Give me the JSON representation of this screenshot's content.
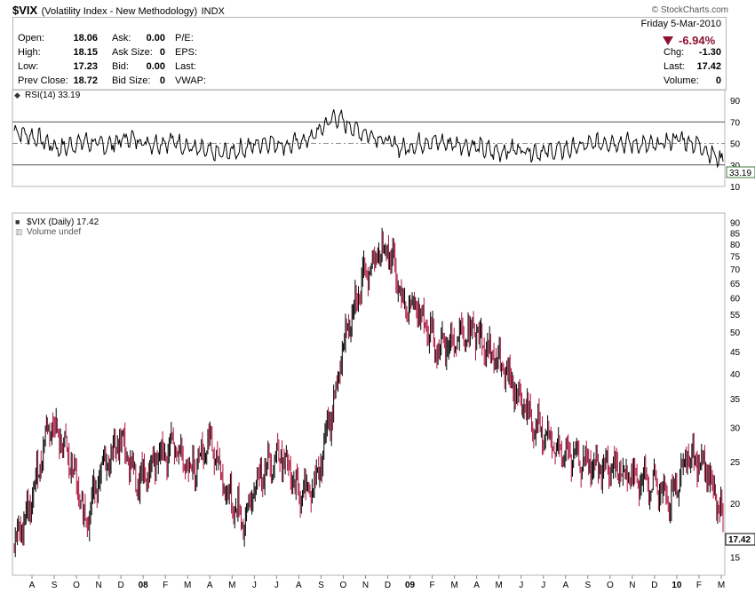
{
  "header": {
    "symbol": "$VIX",
    "name": "(Volatility Index - New Methodology)",
    "exchange": "INDX",
    "watermark": "© StockCharts.com",
    "date": "Friday  5-Mar-2010",
    "change_pct": "-6.94%",
    "quote_left": [
      {
        "label": "Open:",
        "value": "18.06"
      },
      {
        "label": "High:",
        "value": "18.15"
      },
      {
        "label": "Low:",
        "value": "17.23"
      },
      {
        "label": "Prev Close:",
        "value": "18.72"
      }
    ],
    "quote_mid": [
      {
        "label": "Ask:",
        "value": "0.00"
      },
      {
        "label": "Ask Size:",
        "value": "0"
      },
      {
        "label": "Bid:",
        "value": "0.00"
      },
      {
        "label": "Bid Size:",
        "value": "0"
      }
    ],
    "quote_mid2": [
      "P/E:",
      "EPS:",
      "Last:",
      "VWAP:"
    ],
    "quote_right": [
      {
        "label": "Chg:",
        "value": "-1.30"
      },
      {
        "label": "Last:",
        "value": "17.42"
      },
      {
        "label": "Volume:",
        "value": "0"
      }
    ]
  },
  "rsi_panel": {
    "label": "RSI(14) 33.19",
    "last_value": "33.19"
  },
  "price_panel": {
    "label": "$VIX (Daily) 17.42",
    "volume_label": "Volume undef",
    "last_value": "17.42"
  },
  "chart_data": [
    {
      "type": "line",
      "name": "RSI(14)",
      "title": "RSI(14) 33.19",
      "ylim": [
        10,
        100
      ],
      "y_ticks": [
        90,
        70,
        50,
        30,
        10
      ],
      "reference_lines": [
        70,
        50,
        30
      ],
      "x": [
        "2007-08",
        "2007-09",
        "2007-10",
        "2007-11",
        "2007-12",
        "2008-01",
        "2008-02",
        "2008-03",
        "2008-04",
        "2008-05",
        "2008-06",
        "2008-07",
        "2008-08",
        "2008-09",
        "2008-10",
        "2008-11",
        "2008-12",
        "2009-01",
        "2009-02",
        "2009-03",
        "2009-04",
        "2009-05",
        "2009-06",
        "2009-07",
        "2009-08",
        "2009-09",
        "2009-10",
        "2009-11",
        "2009-12",
        "2010-01",
        "2010-02",
        "2010-03"
      ],
      "values": [
        62,
        55,
        45,
        52,
        48,
        55,
        50,
        52,
        44,
        40,
        45,
        52,
        48,
        55,
        75,
        62,
        55,
        45,
        52,
        50,
        48,
        42,
        45,
        42,
        44,
        48,
        52,
        50,
        47,
        55,
        48,
        33
      ]
    },
    {
      "type": "line",
      "name": "$VIX (Daily)",
      "title": "$VIX (Daily) 17.42",
      "ylim": [
        14,
        91
      ],
      "y_scale": "log",
      "y_ticks": [
        90,
        85,
        80,
        75,
        70,
        65,
        60,
        55,
        50,
        45,
        40,
        35,
        30,
        25,
        20,
        15
      ],
      "x_tick_labels": [
        "A",
        "S",
        "O",
        "N",
        "D",
        "08",
        "F",
        "M",
        "A",
        "M",
        "J",
        "J",
        "A",
        "S",
        "O",
        "N",
        "D",
        "09",
        "F",
        "M",
        "A",
        "M",
        "J",
        "J",
        "A",
        "S",
        "O",
        "N",
        "D",
        "10",
        "F",
        "M"
      ],
      "x": [
        "2007-07",
        "2007-08",
        "2007-08",
        "2007-09",
        "2007-10",
        "2007-11",
        "2007-11",
        "2007-12",
        "2008-01",
        "2008-01",
        "2008-02",
        "2008-03",
        "2008-04",
        "2008-05",
        "2008-06",
        "2008-07",
        "2008-08",
        "2008-09",
        "2008-09",
        "2008-10",
        "2008-10",
        "2008-11",
        "2008-11",
        "2008-12",
        "2009-01",
        "2009-02",
        "2009-03",
        "2009-03",
        "2009-04",
        "2009-05",
        "2009-06",
        "2009-07",
        "2009-08",
        "2009-09",
        "2009-10",
        "2009-11",
        "2009-12",
        "2010-01",
        "2010-02",
        "2010-02",
        "2010-03"
      ],
      "values": [
        16,
        20,
        31,
        26,
        18,
        24,
        28,
        22,
        25,
        27,
        24,
        28,
        21,
        18,
        24,
        26,
        21,
        22,
        33,
        55,
        70,
        80,
        58,
        55,
        45,
        48,
        50,
        44,
        38,
        32,
        28,
        26,
        25,
        24,
        24,
        23,
        22,
        20,
        26,
        24,
        18
      ]
    }
  ]
}
